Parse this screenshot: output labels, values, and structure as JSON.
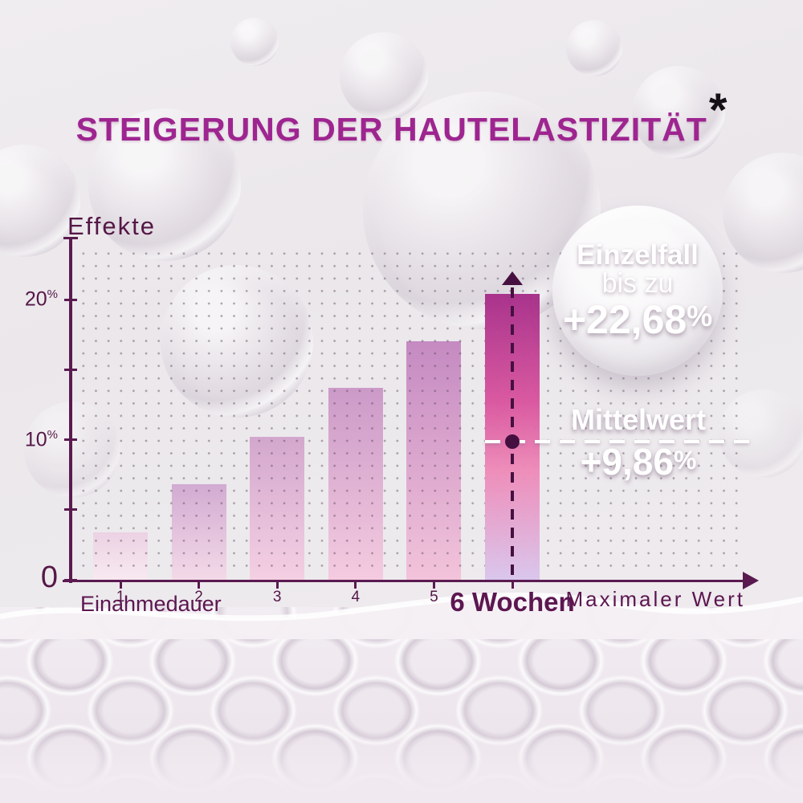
{
  "title": {
    "text": "STEIGERUNG DER HAUTELASTIZITÄT",
    "asterisk": "*"
  },
  "chart_data": {
    "type": "bar",
    "title": "Steigerung der Hautelastizität (Effekte über Einnahmedauer)",
    "ylabel": "Effekte",
    "xlabel": "Einahmedauer",
    "x_axis_end_label": "Maximaler Wert",
    "categories": [
      "1",
      "2",
      "3",
      "4",
      "5",
      "6 Wochen"
    ],
    "values": [
      3.4,
      6.8,
      10.2,
      13.7,
      17.0,
      20.4
    ],
    "unit": "%",
    "ylim": [
      0,
      24.4
    ],
    "grid": "dotted",
    "legend_position": "none",
    "highlight_index": 5,
    "y_ticks": [
      {
        "v": 0,
        "base": "0",
        "sup": ""
      },
      {
        "v": 5,
        "base": "",
        "sup": ""
      },
      {
        "v": 10,
        "base": "10",
        "sup": "%"
      },
      {
        "v": 15,
        "base": "",
        "sup": ""
      },
      {
        "v": 20,
        "base": "20",
        "sup": "%"
      }
    ],
    "mean": {
      "value": 9.86
    },
    "max_individual": {
      "value": 22.68
    }
  },
  "badge": {
    "line1": "Einzelfall",
    "line2": "bis zu",
    "value": "+22,68",
    "unit": "%"
  },
  "mean_label": {
    "title": "Mittelwert",
    "value": "+9,86",
    "unit": "%"
  },
  "labels": {
    "effekte": "Effekte",
    "einahmedauer": "Einahmedauer",
    "maxwert": "Maximaler Wert"
  },
  "colors": {
    "title": "#9e2590",
    "axis": "#5a1a50",
    "dark_accent": "#451040",
    "mean_dash": "#ffffff",
    "bars": [
      {
        "top": "#eccfe2",
        "bottom": "#f9e9f1"
      },
      {
        "top": "#cfa4cf",
        "bottom": "#f4d8e7"
      },
      {
        "top": "#d0a0ca",
        "bottom": "#f5cde2"
      },
      {
        "top": "#c891c4",
        "bottom": "#f5c8de"
      },
      {
        "top": "#c080bd",
        "bottom": "#f3bfd8"
      },
      {
        "top": "#a62c88",
        "mid1": "#d9549e",
        "mid2": "#ee8ab8",
        "bottom": "#d9c5ec"
      }
    ]
  }
}
